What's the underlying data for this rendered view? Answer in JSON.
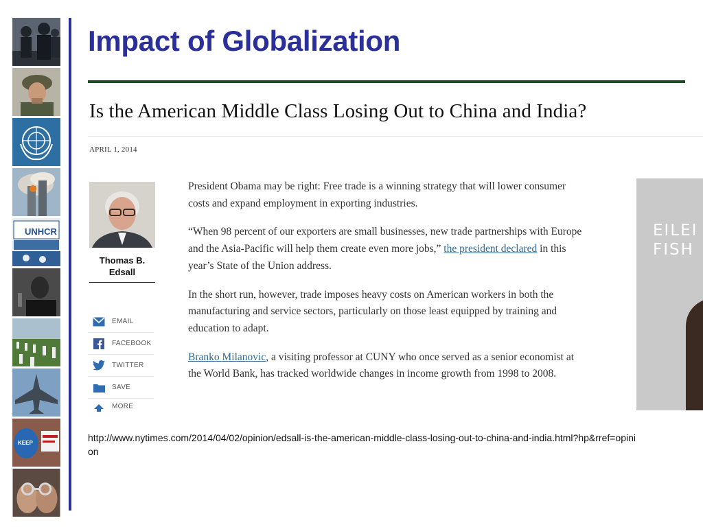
{
  "slide": {
    "title": "Impact of Globalization",
    "url": "http://www.nytimes.com/2014/04/02/opinion/edsall-is-the-american-middle-class-losing-out-to-china-and-india.html?hp&rref=opinion"
  },
  "strip": {
    "tiles": [
      {
        "icon": "riot-police-icon"
      },
      {
        "icon": "soldier-icon"
      },
      {
        "icon": "un-emblem-icon"
      },
      {
        "icon": "burning-tower-icon"
      },
      {
        "icon": "unhcr-truck-icon",
        "label": "UNHCR"
      },
      {
        "icon": "speaker-portrait-icon"
      },
      {
        "icon": "cemetery-icon"
      },
      {
        "icon": "fighter-jet-icon"
      },
      {
        "icon": "protest-signs-icon"
      },
      {
        "icon": "handcuffs-icon"
      }
    ]
  },
  "article": {
    "headline": "Is the American Middle Class Losing Out to China and India?",
    "date": "APRIL 1, 2014",
    "author": {
      "line1": "Thomas B.",
      "line2": "Edsall"
    },
    "share": [
      {
        "icon": "email-icon",
        "label": "EMAIL"
      },
      {
        "icon": "facebook-icon",
        "label": "FACEBOOK"
      },
      {
        "icon": "twitter-icon",
        "label": "TWITTER"
      },
      {
        "icon": "folder-icon",
        "label": "SAVE"
      },
      {
        "icon": "share-arrow-icon",
        "label": "MORE"
      }
    ],
    "paragraphs": {
      "p1": "President Obama may be right: Free trade is a winning strategy that will lower consumer costs and expand employment in exporting industries.",
      "p2_before": "“When 98 percent of our exporters are small businesses, new trade partnerships with Europe and the Asia-Pacific will help them create even more jobs,” ",
      "p2_link": "the president declared",
      "p2_after": " in this year’s State of the Union address.",
      "p3": "In the short run, however, trade imposes heavy costs on American workers in both the manufacturing and service sectors, particularly on those least equipped by training and education to adapt.",
      "p4_link": "Branko Milanovic",
      "p4_after": ", a visiting professor at CUNY who once served as a senior economist at the World Bank, has tracked worldwide changes in income growth from 1998 to 2008."
    },
    "ad": {
      "line1": "EILEI",
      "line2": "FISH"
    }
  },
  "colors": {
    "title": "#2b2f9a",
    "rule": "#1f4a1f",
    "link": "#326891"
  }
}
